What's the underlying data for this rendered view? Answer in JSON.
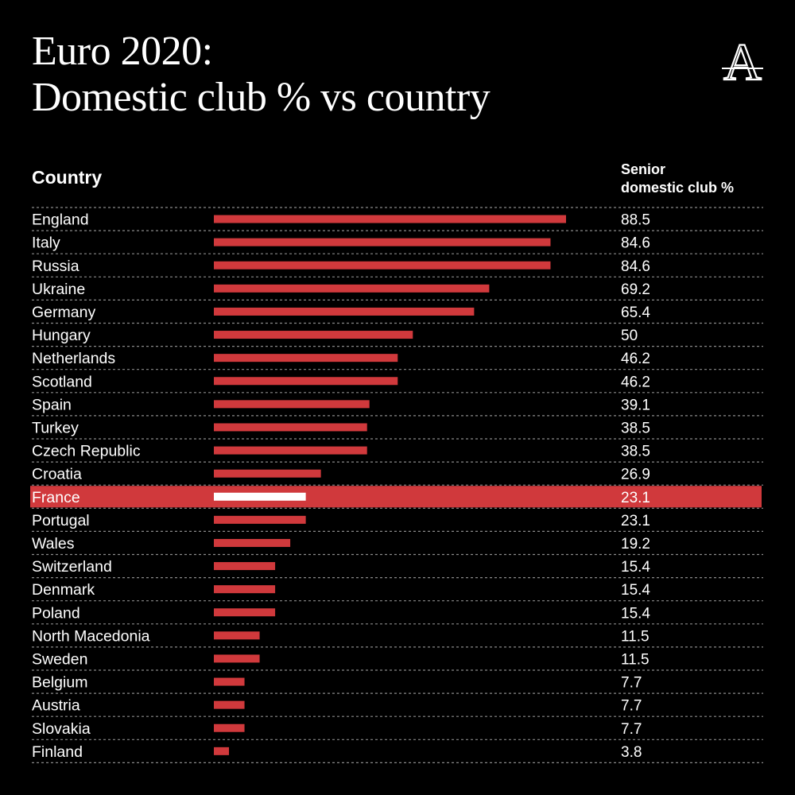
{
  "title_line1": "Euro 2020:",
  "title_line2": "Domestic club % vs country",
  "logo_letter": "A",
  "column_country": "Country",
  "column_value_line1": "Senior",
  "column_value_line2": "domestic club %",
  "colors": {
    "background": "#000000",
    "bar": "#d0393c",
    "highlight_row": "#d0393c",
    "highlight_bar": "#ffffff",
    "text": "#ffffff",
    "divider": "#8a8a8a"
  },
  "chart_data": {
    "type": "bar",
    "orientation": "horizontal",
    "highlight": "France",
    "categories": [
      "England",
      "Italy",
      "Russia",
      "Ukraine",
      "Germany",
      "Hungary",
      "Netherlands",
      "Scotland",
      "Spain",
      "Turkey",
      "Czech Republic",
      "Croatia",
      "France",
      "Portugal",
      "Wales",
      "Switzerland",
      "Denmark",
      "Poland",
      "North Macedonia",
      "Sweden",
      "Belgium",
      "Austria",
      "Slovakia",
      "Finland"
    ],
    "value_labels": [
      "88.5",
      "84.6",
      "84.6",
      "69.2",
      "65.4",
      "50",
      "46.2",
      "46.2",
      "39.1",
      "38.5",
      "38.5",
      "26.9",
      "23.1",
      "23.1",
      "19.2",
      "15.4",
      "15.4",
      "15.4",
      "11.5",
      "11.5",
      "7.7",
      "7.7",
      "7.7",
      "3.8"
    ],
    "values": [
      88.5,
      84.6,
      84.6,
      69.2,
      65.4,
      50,
      46.2,
      46.2,
      39.1,
      38.5,
      38.5,
      26.9,
      23.1,
      23.1,
      19.2,
      15.4,
      15.4,
      15.4,
      11.5,
      11.5,
      7.7,
      7.7,
      7.7,
      3.8
    ],
    "xlim": [
      0,
      88.5
    ]
  }
}
